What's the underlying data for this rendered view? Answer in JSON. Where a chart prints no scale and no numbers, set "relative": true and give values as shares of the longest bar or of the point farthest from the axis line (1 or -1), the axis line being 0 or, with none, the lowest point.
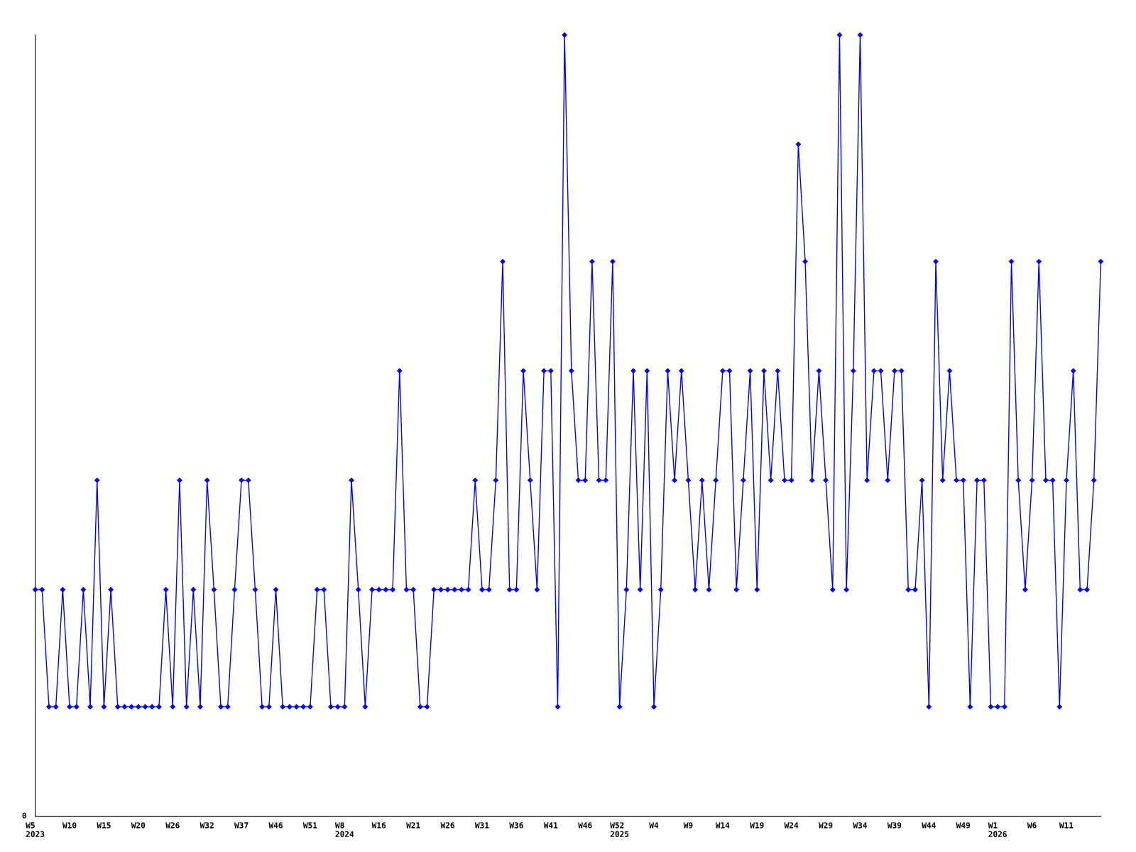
{
  "chart_data": {
    "type": "line",
    "relative": true,
    "marker": "diamond",
    "line_style": "solid",
    "grid": false,
    "categories": [
      "W5\n2023",
      null,
      null,
      null,
      null,
      "W10",
      null,
      null,
      null,
      null,
      "W15",
      null,
      null,
      null,
      null,
      "W20",
      null,
      null,
      null,
      null,
      "W26",
      null,
      null,
      null,
      null,
      "W32",
      null,
      null,
      null,
      null,
      "W37",
      null,
      null,
      null,
      null,
      "W46",
      null,
      null,
      null,
      null,
      "W51",
      null,
      null,
      null,
      null,
      "W8\n2024",
      null,
      null,
      null,
      null,
      "W16",
      null,
      null,
      null,
      null,
      "W21",
      null,
      null,
      null,
      null,
      "W26",
      null,
      null,
      null,
      null,
      "W31",
      null,
      null,
      null,
      null,
      "W36",
      null,
      null,
      null,
      null,
      "W41",
      null,
      null,
      null,
      null,
      "W46",
      null,
      null,
      null,
      null,
      "W52\n2025",
      null,
      null,
      null,
      null,
      "W4",
      null,
      null,
      null,
      null,
      "W9",
      null,
      null,
      null,
      null,
      "W14",
      null,
      null,
      null,
      null,
      "W19",
      null,
      null,
      null,
      null,
      "W24",
      null,
      null,
      null,
      null,
      "W29",
      null,
      null,
      null,
      null,
      "W34",
      null,
      null,
      null,
      null,
      "W39",
      null,
      null,
      null,
      null,
      "W44",
      null,
      null,
      null,
      null,
      "W49",
      null,
      null,
      null,
      null,
      "W1\n2026",
      null,
      null,
      null,
      null,
      "W6",
      null,
      null,
      null,
      null,
      "W11",
      null,
      null,
      null,
      null,
      null
    ],
    "series": [
      {
        "color": "#0000ff",
        "values": [
          0.29,
          0.29,
          0.14,
          0.14,
          0.29,
          0.14,
          0.14,
          0.29,
          0.14,
          0.43,
          0.14,
          0.29,
          0.14,
          0.14,
          0.14,
          0.14,
          0.14,
          0.14,
          0.14,
          0.29,
          0.14,
          0.43,
          0.14,
          0.29,
          0.14,
          0.43,
          0.29,
          0.14,
          0.14,
          0.29,
          0.43,
          0.43,
          0.29,
          0.14,
          0.14,
          0.29,
          0.14,
          0.14,
          0.14,
          0.14,
          0.14,
          0.29,
          0.29,
          0.14,
          0.14,
          0.14,
          0.43,
          0.29,
          0.14,
          0.29,
          0.29,
          0.29,
          0.29,
          0.57,
          0.29,
          0.29,
          0.14,
          0.14,
          0.29,
          0.29,
          0.29,
          0.29,
          0.29,
          0.29,
          0.43,
          0.29,
          0.29,
          0.43,
          0.71,
          0.29,
          0.29,
          0.57,
          0.43,
          0.29,
          0.57,
          0.57,
          0.14,
          1,
          0.57,
          0.43,
          0.43,
          0.71,
          0.43,
          0.43,
          0.71,
          0.14,
          0.29,
          0.57,
          0.29,
          0.57,
          0.14,
          0.29,
          0.57,
          0.43,
          0.57,
          0.43,
          0.29,
          0.43,
          0.29,
          0.43,
          0.57,
          0.57,
          0.29,
          0.43,
          0.57,
          0.29,
          0.57,
          0.43,
          0.57,
          0.43,
          0.43,
          0.86,
          0.71,
          0.43,
          0.57,
          0.43,
          0.29,
          1,
          0.29,
          0.57,
          1,
          0.43,
          0.57,
          0.57,
          0.43,
          0.57,
          0.57,
          0.29,
          0.29,
          0.43,
          0.14,
          0.71,
          0.43,
          0.57,
          0.43,
          0.43,
          0.14,
          0.43,
          0.43,
          0.14,
          0.14,
          0.14,
          0.71,
          0.43,
          0.29,
          0.43,
          0.71,
          0.43,
          0.43,
          0.14,
          0.43,
          0.57,
          0.29,
          0.29,
          0.43,
          0.71
        ]
      }
    ],
    "annotations": [
      "0"
    ]
  }
}
